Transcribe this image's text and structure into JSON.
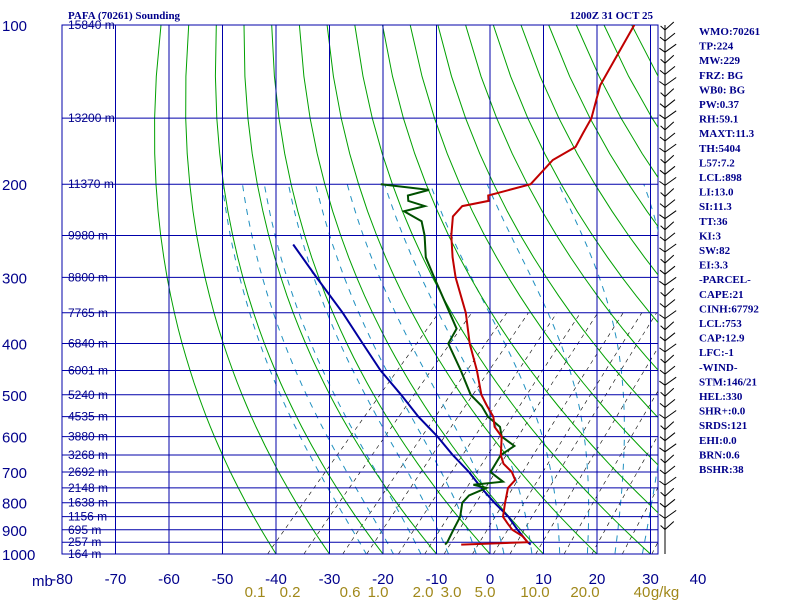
{
  "title": "PAFA (70261) Sounding",
  "time": "1200Z 31 OCT 25",
  "chart_data": {
    "type": "skew-t",
    "pressure_levels": [
      "100",
      "200",
      "300",
      "400",
      "500",
      "600",
      "700",
      "800",
      "900",
      "1000"
    ],
    "temperature_ticks": [
      "-80",
      "-70",
      "-60",
      "-50",
      "-40",
      "-30",
      "-20",
      "-10",
      "0",
      "10",
      "20",
      "30",
      "40"
    ],
    "mb_label": "mb",
    "mixing_ratio_labels": [
      "0.1",
      "0.2",
      "0.6",
      "1.0",
      "2.0",
      "3.0",
      "5.0",
      "10.0",
      "20.0",
      "40",
      "g/kg"
    ],
    "height_labels": [
      {
        "p": 100,
        "text": "15840 m"
      },
      {
        "p": 150,
        "text": "13200 m"
      },
      {
        "p": 200,
        "text": "11370 m"
      },
      {
        "p": 250,
        "text": "9980 m"
      },
      {
        "p": 300,
        "text": "8800 m"
      },
      {
        "p": 350,
        "text": "7765 m"
      },
      {
        "p": 400,
        "text": "6840 m"
      },
      {
        "p": 450,
        "text": "6001 m"
      },
      {
        "p": 500,
        "text": "5240 m"
      },
      {
        "p": 550,
        "text": "4535 m"
      },
      {
        "p": 600,
        "text": "3880 m"
      },
      {
        "p": 650,
        "text": "3268 m"
      },
      {
        "p": 700,
        "text": "2692 m"
      },
      {
        "p": 750,
        "text": "2148 m"
      },
      {
        "p": 800,
        "text": "1638 m"
      },
      {
        "p": 850,
        "text": "1156 m"
      },
      {
        "p": 900,
        "text": "695 m"
      },
      {
        "p": 950,
        "text": "257 m"
      },
      {
        "p": 1000,
        "text": "164 m"
      }
    ],
    "temperature": [
      [
        960,
        -7
      ],
      [
        950,
        5
      ],
      [
        925,
        3
      ],
      [
        900,
        0
      ],
      [
        875,
        -2
      ],
      [
        850,
        -4
      ],
      [
        800,
        -6
      ],
      [
        750,
        -8
      ],
      [
        725,
        -8
      ],
      [
        700,
        -10
      ],
      [
        675,
        -13
      ],
      [
        650,
        -15
      ],
      [
        600,
        -18
      ],
      [
        575,
        -21
      ],
      [
        550,
        -23
      ],
      [
        525,
        -26
      ],
      [
        500,
        -29
      ],
      [
        450,
        -34
      ],
      [
        400,
        -40
      ],
      [
        350,
        -46
      ],
      [
        300,
        -54
      ],
      [
        275,
        -58
      ],
      [
        250,
        -62
      ],
      [
        230,
        -65
      ],
      [
        220,
        -65
      ],
      [
        215,
        -61
      ],
      [
        210,
        -62
      ],
      [
        205,
        -59
      ],
      [
        200,
        -56
      ],
      [
        180,
        -56
      ],
      [
        170,
        -54
      ],
      [
        160,
        -55
      ],
      [
        150,
        -56
      ],
      [
        130,
        -60
      ],
      [
        100,
        -64
      ]
    ],
    "dewpoint": [
      [
        960,
        -10
      ],
      [
        950,
        -10
      ],
      [
        900,
        -11
      ],
      [
        850,
        -12
      ],
      [
        800,
        -14
      ],
      [
        775,
        -14
      ],
      [
        750,
        -12
      ],
      [
        740,
        -15
      ],
      [
        730,
        -10
      ],
      [
        700,
        -14
      ],
      [
        650,
        -15
      ],
      [
        625,
        -14
      ],
      [
        600,
        -18
      ],
      [
        575,
        -20
      ],
      [
        550,
        -24
      ],
      [
        525,
        -27
      ],
      [
        500,
        -31
      ],
      [
        450,
        -37
      ],
      [
        400,
        -44
      ],
      [
        375,
        -45
      ],
      [
        350,
        -49
      ],
      [
        300,
        -58
      ],
      [
        275,
        -63
      ],
      [
        250,
        -67
      ],
      [
        235,
        -70
      ],
      [
        225,
        -75
      ],
      [
        220,
        -72
      ],
      [
        215,
        -76
      ],
      [
        210,
        -77
      ],
      [
        205,
        -74
      ],
      [
        200,
        -84
      ]
    ],
    "parcel": [
      [
        960,
        6
      ],
      [
        950,
        5
      ],
      [
        900,
        1
      ],
      [
        850,
        -3
      ],
      [
        800,
        -8
      ],
      [
        750,
        -13
      ],
      [
        700,
        -18
      ],
      [
        650,
        -24
      ],
      [
        600,
        -30
      ],
      [
        550,
        -37
      ],
      [
        500,
        -44
      ],
      [
        450,
        -52
      ],
      [
        400,
        -60
      ],
      [
        350,
        -69
      ],
      [
        300,
        -80
      ],
      [
        260,
        -90
      ]
    ]
  },
  "indices": [
    "WMO:70261",
    "TP:224",
    "MW:229",
    "FRZ: BG",
    "WB0: BG",
    "PW:0.37",
    "RH:59.1",
    "MAXT:11.3",
    "TH:5404",
    "L57:7.2",
    "LCL:898",
    "LI:13.0",
    "SI:11.3",
    "TT:36",
    "KI:3",
    "SW:82",
    "EI:3.3",
    "-PARCEL-",
    "CAPE:21",
    "CINH:67792",
    "LCL:753",
    "CAP:12.9",
    "LFC:-1",
    "-WIND-",
    "STM:146/21",
    "HEL:330",
    "SHR+:0.0",
    "SRDS:121",
    "EHI:0.0",
    "BRN:0.6",
    "BSHR:38"
  ],
  "colors": {
    "grid": "#0000aa",
    "dry": "#00a000",
    "moist": "#2090c0",
    "mix": "#000000",
    "temp": "#c00000",
    "dew": "#005000",
    "parcel": "#0000a0"
  }
}
